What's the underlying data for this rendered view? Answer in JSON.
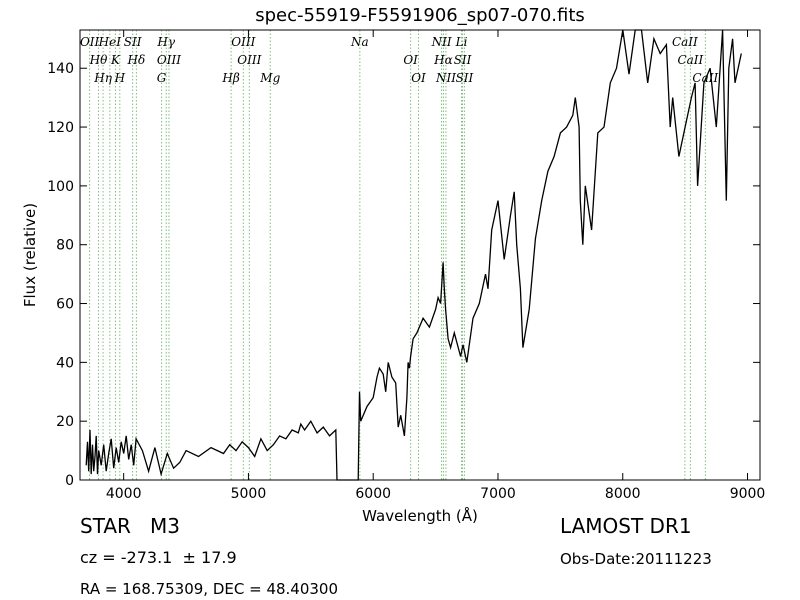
{
  "chart_data": {
    "type": "line",
    "title": "spec-55919-F5591906_sp07-070.fits",
    "xlabel": "Wavelength (Å)",
    "ylabel": "Flux (relative)",
    "xlim": [
      3650,
      9100
    ],
    "ylim": [
      0,
      153
    ],
    "xticks": [
      4000,
      5000,
      6000,
      7000,
      8000,
      9000
    ],
    "yticks": [
      0,
      20,
      40,
      60,
      80,
      100,
      120,
      140
    ],
    "grid": false,
    "line_color": "#000000",
    "marker_color": "#7fbf7f",
    "series": [
      {
        "x": [
          3700,
          3710,
          3720,
          3730,
          3740,
          3750,
          3760,
          3770,
          3780,
          3790,
          3800,
          3820,
          3840,
          3860,
          3880,
          3900,
          3920,
          3940,
          3960,
          3980,
          4000,
          4020,
          4040,
          4060,
          4080,
          4100,
          4150,
          4200,
          4250,
          4300,
          4350,
          4400,
          4450,
          4500,
          4600,
          4700,
          4800,
          4850,
          4900,
          4950,
          5000,
          5050,
          5100,
          5150,
          5200,
          5250,
          5300,
          5350,
          5400,
          5420,
          5450,
          5500,
          5550,
          5600,
          5650,
          5700,
          5710,
          5720,
          5800,
          5850,
          5880,
          5890,
          5900,
          5950,
          6000,
          6030,
          6050,
          6080,
          6100,
          6120,
          6150,
          6180,
          6200,
          6220,
          6250,
          6270,
          6280,
          6290,
          6300,
          6320,
          6350,
          6400,
          6450,
          6500,
          6520,
          6540,
          6560,
          6570,
          6580,
          6600,
          6620,
          6650,
          6700,
          6720,
          6750,
          6800,
          6850,
          6900,
          6920,
          6950,
          7000,
          7050,
          7100,
          7130,
          7150,
          7180,
          7200,
          7250,
          7300,
          7350,
          7400,
          7450,
          7500,
          7550,
          7600,
          7620,
          7650,
          7660,
          7680,
          7700,
          7750,
          7800,
          7850,
          7900,
          7950,
          8000,
          8050,
          8100,
          8150,
          8200,
          8250,
          8300,
          8350,
          8380,
          8400,
          8450,
          8500,
          8550,
          8580,
          8600,
          8650,
          8700,
          8750,
          8800,
          8830,
          8850,
          8880,
          8900,
          8950
        ],
        "y": [
          5,
          13,
          3,
          17,
          2,
          12,
          3,
          8,
          15,
          2,
          10,
          5,
          12,
          3,
          9,
          14,
          4,
          11,
          6,
          13,
          9,
          15,
          7,
          12,
          5,
          14,
          10,
          3,
          11,
          2,
          9,
          4,
          6,
          10,
          8,
          11,
          9,
          12,
          10,
          13,
          11,
          8,
          14,
          10,
          12,
          15,
          14,
          17,
          16,
          19,
          17,
          20,
          16,
          18,
          15,
          17,
          0,
          0,
          0,
          0,
          0,
          30,
          20,
          25,
          28,
          35,
          38,
          36,
          30,
          40,
          35,
          33,
          18,
          22,
          15,
          28,
          40,
          38,
          42,
          48,
          50,
          55,
          52,
          58,
          62,
          60,
          74,
          65,
          58,
          48,
          45,
          50,
          42,
          46,
          40,
          55,
          60,
          70,
          65,
          85,
          95,
          75,
          90,
          98,
          80,
          65,
          45,
          58,
          82,
          95,
          105,
          110,
          118,
          120,
          124,
          130,
          120,
          95,
          80,
          100,
          85,
          118,
          120,
          135,
          140,
          155,
          138,
          155,
          160,
          135,
          150,
          145,
          148,
          120,
          130,
          110,
          120,
          130,
          135,
          100,
          135,
          140,
          120,
          155,
          95,
          140,
          150,
          135,
          145
        ]
      }
    ],
    "emission_lines": [
      {
        "wl": 3727,
        "text": "OII"
      },
      {
        "wl": 3798,
        "text": "Hθ"
      },
      {
        "wl": 3835,
        "text": "Hη"
      },
      {
        "wl": 3889,
        "text": "HeI"
      },
      {
        "wl": 3934,
        "text": "K"
      },
      {
        "wl": 3969,
        "text": "H"
      },
      {
        "wl": 4072,
        "text": "SII"
      },
      {
        "wl": 4102,
        "text": "Hδ"
      },
      {
        "wl": 4304,
        "text": "G"
      },
      {
        "wl": 4341,
        "text": "Hγ"
      },
      {
        "wl": 4363,
        "text": "OIII"
      },
      {
        "wl": 4861,
        "text": "Hβ"
      },
      {
        "wl": 4959,
        "text": "OIII"
      },
      {
        "wl": 5007,
        "text": "OIII"
      },
      {
        "wl": 5175,
        "text": "Mg"
      },
      {
        "wl": 5893,
        "text": "Na"
      },
      {
        "wl": 6300,
        "text": "OI"
      },
      {
        "wl": 6363,
        "text": "OI"
      },
      {
        "wl": 6548,
        "text": "NII"
      },
      {
        "wl": 6563,
        "text": "Hα"
      },
      {
        "wl": 6583,
        "text": "NII"
      },
      {
        "wl": 6708,
        "text": "Li"
      },
      {
        "wl": 6716,
        "text": "SII"
      },
      {
        "wl": 6731,
        "text": "SII"
      },
      {
        "wl": 8498,
        "text": "CaII"
      },
      {
        "wl": 8542,
        "text": "CaII"
      },
      {
        "wl": 8662,
        "text": "CaII"
      }
    ]
  },
  "info": {
    "object_class": "STAR",
    "subclass": "M3",
    "survey": "LAMOST DR1",
    "cz": "cz = -273.1  ± 17.9",
    "obs_date": "Obs-Date:20111223",
    "radec": "RA = 168.75309, DEC = 48.40300"
  }
}
